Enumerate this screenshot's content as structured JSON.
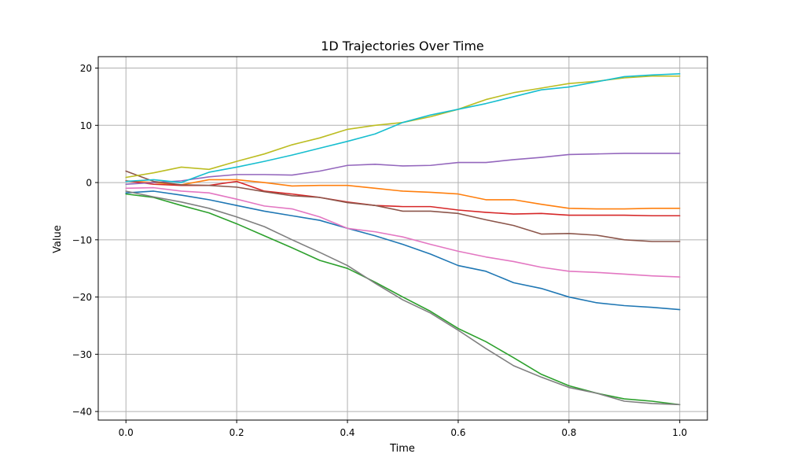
{
  "chart_data": {
    "type": "line",
    "title": "1D Trajectories Over Time",
    "xlabel": "Time",
    "ylabel": "Value",
    "xlim": [
      -0.05,
      1.05
    ],
    "ylim": [
      -41.5,
      22
    ],
    "xticks": [
      0.0,
      0.2,
      0.4,
      0.6,
      0.8,
      1.0
    ],
    "xtick_labels": [
      "0.0",
      "0.2",
      "0.4",
      "0.6",
      "0.8",
      "1.0"
    ],
    "yticks": [
      -40,
      -30,
      -20,
      -10,
      0,
      10,
      20
    ],
    "ytick_labels": [
      "−40",
      "−30",
      "−20",
      "−10",
      "0",
      "10",
      "20"
    ],
    "grid": true,
    "x": [
      0.0,
      0.05,
      0.1,
      0.15,
      0.2,
      0.25,
      0.3,
      0.35,
      0.4,
      0.45,
      0.5,
      0.55,
      0.6,
      0.65,
      0.7,
      0.75,
      0.8,
      0.85,
      0.9,
      0.95,
      1.0
    ],
    "series": [
      {
        "color": "#1f77b4",
        "values": [
          -1.8,
          -1.5,
          -2.2,
          -3.0,
          -4.0,
          -5.0,
          -5.8,
          -6.6,
          -8.0,
          -9.3,
          -10.8,
          -12.5,
          -14.5,
          -15.5,
          -17.5,
          -18.5,
          -20.0,
          -21.0,
          -21.5,
          -21.8,
          -22.2
        ]
      },
      {
        "color": "#ff7f0e",
        "values": [
          0.3,
          0.0,
          -0.4,
          0.5,
          0.5,
          0.0,
          -0.6,
          -0.5,
          -0.5,
          -1.0,
          -1.5,
          -1.7,
          -2.0,
          -3.0,
          -3.0,
          -3.8,
          -4.5,
          -4.6,
          -4.6,
          -4.5,
          -4.5
        ]
      },
      {
        "color": "#2ca02c",
        "values": [
          -2.0,
          -2.6,
          -4.0,
          -5.3,
          -7.2,
          -9.3,
          -11.4,
          -13.6,
          -15.0,
          -17.4,
          -20.0,
          -22.5,
          -25.5,
          -27.8,
          -30.6,
          -33.5,
          -35.5,
          -36.8,
          -37.8,
          -38.2,
          -38.8
        ]
      },
      {
        "color": "#d62728",
        "values": [
          0.3,
          -0.3,
          -0.5,
          -0.5,
          0.2,
          -1.5,
          -2.0,
          -2.6,
          -3.4,
          -4.0,
          -4.2,
          -4.2,
          -4.8,
          -5.2,
          -5.5,
          -5.4,
          -5.7,
          -5.7,
          -5.7,
          -5.8,
          -5.8
        ]
      },
      {
        "color": "#9467bd",
        "values": [
          -0.3,
          0.0,
          0.3,
          1.0,
          1.4,
          1.4,
          1.3,
          2.0,
          3.0,
          3.2,
          2.9,
          3.0,
          3.5,
          3.5,
          4.0,
          4.4,
          4.9,
          5.0,
          5.1,
          5.1,
          5.1
        ]
      },
      {
        "color": "#8c564b",
        "values": [
          2.0,
          0.2,
          -0.4,
          -0.5,
          -0.8,
          -1.6,
          -2.3,
          -2.6,
          -3.5,
          -4.0,
          -5.0,
          -5.0,
          -5.4,
          -6.5,
          -7.5,
          -9.0,
          -8.9,
          -9.2,
          -10.0,
          -10.3,
          -10.3
        ]
      },
      {
        "color": "#e377c2",
        "values": [
          -1.0,
          -0.9,
          -1.5,
          -1.8,
          -2.9,
          -4.1,
          -4.6,
          -6.0,
          -8.0,
          -8.6,
          -9.5,
          -10.8,
          -12.0,
          -13.0,
          -13.8,
          -14.8,
          -15.5,
          -15.7,
          -16.0,
          -16.3,
          -16.5
        ]
      },
      {
        "color": "#7f7f7f",
        "values": [
          -1.5,
          -2.5,
          -3.4,
          -4.5,
          -6.0,
          -7.7,
          -10.0,
          -12.2,
          -14.5,
          -17.6,
          -20.5,
          -22.8,
          -25.8,
          -29.0,
          -32.0,
          -34.0,
          -35.8,
          -36.8,
          -38.2,
          -38.6,
          -38.8
        ]
      },
      {
        "color": "#bcbd22",
        "values": [
          0.9,
          1.7,
          2.7,
          2.3,
          3.7,
          5.0,
          6.6,
          7.8,
          9.3,
          10.0,
          10.5,
          11.5,
          12.8,
          14.5,
          15.7,
          16.5,
          17.3,
          17.7,
          18.3,
          18.6,
          18.6
        ]
      },
      {
        "color": "#17becf",
        "values": [
          0.2,
          0.5,
          0.0,
          1.8,
          2.7,
          3.7,
          4.8,
          6.0,
          7.2,
          8.5,
          10.5,
          11.8,
          12.8,
          13.8,
          15.0,
          16.2,
          16.7,
          17.6,
          18.5,
          18.8,
          19.0
        ]
      }
    ]
  }
}
